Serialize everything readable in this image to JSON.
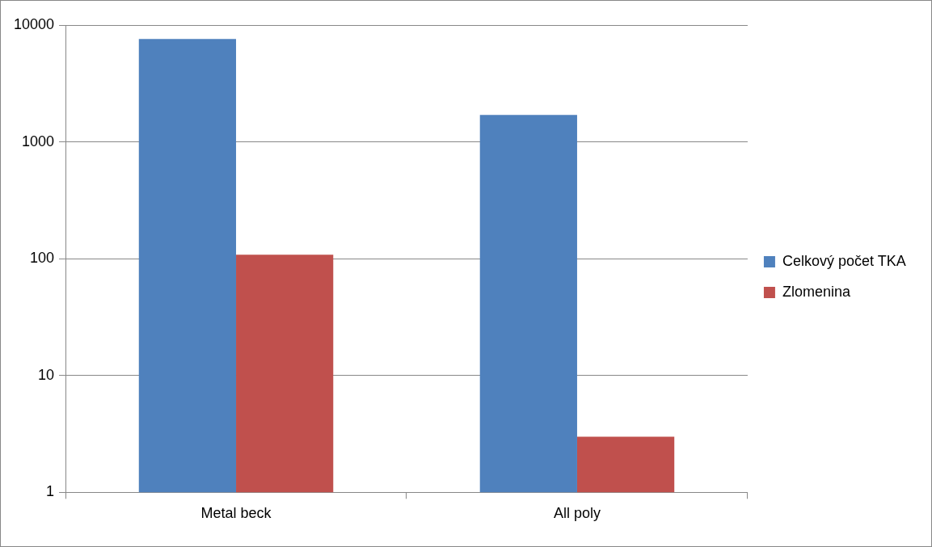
{
  "chart_data": {
    "type": "bar",
    "categories": [
      "Metal beck",
      "All poly"
    ],
    "series": [
      {
        "name": "Celkový počet TKA",
        "color": "#4f81bd",
        "values": [
          7600,
          1700
        ]
      },
      {
        "name": "Zlomenina",
        "color": "#c0504d",
        "values": [
          108,
          3
        ]
      }
    ],
    "log": "y",
    "ylim": [
      1,
      10000
    ],
    "yticks": [
      1,
      10,
      100,
      1000,
      10000
    ],
    "grid": "y",
    "legend": "right"
  }
}
